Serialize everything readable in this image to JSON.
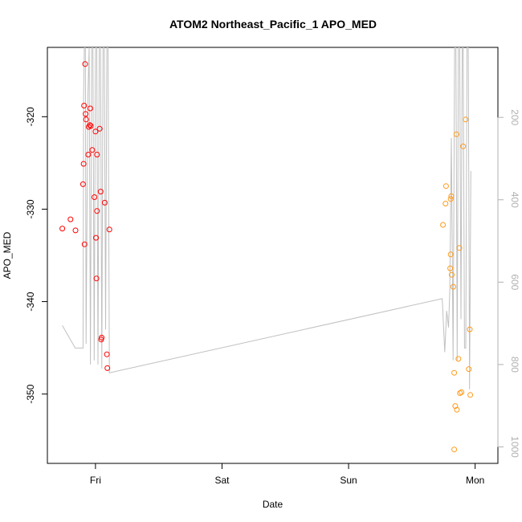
{
  "chart_data": {
    "type": "scatter",
    "title": "ATOM2 Northeast_Pacific_1 APO_MED",
    "xlabel": "Date",
    "ylabel": "APO_MED",
    "x_ticks": [
      {
        "label": "Fri",
        "day": 0
      },
      {
        "label": "Sat",
        "day": 1
      },
      {
        "label": "Sun",
        "day": 2
      },
      {
        "label": "Mon",
        "day": 3
      }
    ],
    "xlim": [
      -0.38,
      3.18
    ],
    "ylim": [
      -357.5,
      -312.5
    ],
    "y_ticks": [
      -320,
      -330,
      -340,
      -350
    ],
    "y2_ticks": [
      200,
      400,
      600,
      800,
      1000
    ],
    "y2lim": [
      1040,
      30
    ],
    "grid": false,
    "colors": {
      "series1": "#ff0000",
      "series2": "#ff9a1a",
      "pressure": "#c0c0c0",
      "right_axis": "#b0b0b0"
    },
    "series": [
      {
        "color": "#ff0000",
        "points": [
          {
            "x": -0.262,
            "y": -332.1
          },
          {
            "x": -0.197,
            "y": -331.1
          },
          {
            "x": -0.158,
            "y": -332.3
          },
          {
            "x": -0.098,
            "y": -327.3
          },
          {
            "x": -0.094,
            "y": -325.1
          },
          {
            "x": -0.09,
            "y": -318.8
          },
          {
            "x": -0.086,
            "y": -333.8
          },
          {
            "x": -0.082,
            "y": -314.3
          },
          {
            "x": -0.078,
            "y": -319.7
          },
          {
            "x": -0.074,
            "y": -320.3
          },
          {
            "x": -0.057,
            "y": -324.1
          },
          {
            "x": -0.053,
            "y": -321.1
          },
          {
            "x": -0.045,
            "y": -320.9
          },
          {
            "x": -0.041,
            "y": -319.1
          },
          {
            "x": -0.037,
            "y": -321.0
          },
          {
            "x": -0.025,
            "y": -323.6
          },
          {
            "x": -0.008,
            "y": -328.7
          },
          {
            "x": 0.0,
            "y": -321.6
          },
          {
            "x": 0.004,
            "y": -333.1
          },
          {
            "x": 0.008,
            "y": -337.5
          },
          {
            "x": 0.012,
            "y": -324.1
          },
          {
            "x": 0.012,
            "y": -330.2
          },
          {
            "x": 0.033,
            "y": -321.3
          },
          {
            "x": 0.041,
            "y": -328.1
          },
          {
            "x": 0.045,
            "y": -344.1
          },
          {
            "x": 0.049,
            "y": -343.9
          },
          {
            "x": 0.073,
            "y": -329.3
          },
          {
            "x": 0.09,
            "y": -345.7
          },
          {
            "x": 0.094,
            "y": -347.2
          },
          {
            "x": 0.11,
            "y": -332.2
          }
        ]
      },
      {
        "color": "#ff9a1a",
        "points": [
          {
            "x": 2.746,
            "y": -331.7
          },
          {
            "x": 2.766,
            "y": -329.4
          },
          {
            "x": 2.77,
            "y": -327.5
          },
          {
            "x": 2.803,
            "y": -336.4
          },
          {
            "x": 2.807,
            "y": -334.9
          },
          {
            "x": 2.807,
            "y": -328.9
          },
          {
            "x": 2.811,
            "y": -328.6
          },
          {
            "x": 2.815,
            "y": -337.1
          },
          {
            "x": 2.827,
            "y": -338.4
          },
          {
            "x": 2.835,
            "y": -347.7
          },
          {
            "x": 2.835,
            "y": -356.0
          },
          {
            "x": 2.843,
            "y": -351.3
          },
          {
            "x": 2.852,
            "y": -321.9
          },
          {
            "x": 2.856,
            "y": -351.7
          },
          {
            "x": 2.868,
            "y": -346.2
          },
          {
            "x": 2.876,
            "y": -334.2
          },
          {
            "x": 2.88,
            "y": -349.9
          },
          {
            "x": 2.892,
            "y": -349.8
          },
          {
            "x": 2.905,
            "y": -323.2
          },
          {
            "x": 2.925,
            "y": -320.3
          },
          {
            "x": 2.95,
            "y": -347.3
          },
          {
            "x": 2.958,
            "y": -343.0
          },
          {
            "x": 2.962,
            "y": -350.1
          }
        ]
      }
    ],
    "pressure_line": [
      {
        "x": -0.262,
        "y": 705
      },
      {
        "x": -0.16,
        "y": 760
      },
      {
        "x": -0.098,
        "y": 760
      },
      {
        "x": -0.094,
        "y": 150
      },
      {
        "x": -0.088,
        "y": 30
      },
      {
        "x": -0.08,
        "y": 30
      },
      {
        "x": -0.074,
        "y": 750
      },
      {
        "x": -0.06,
        "y": 150
      },
      {
        "x": -0.05,
        "y": 30
      },
      {
        "x": -0.04,
        "y": 800
      },
      {
        "x": -0.03,
        "y": 30
      },
      {
        "x": -0.02,
        "y": 30
      },
      {
        "x": -0.01,
        "y": 790
      },
      {
        "x": 0.0,
        "y": 30
      },
      {
        "x": 0.01,
        "y": 30
      },
      {
        "x": 0.02,
        "y": 800
      },
      {
        "x": 0.03,
        "y": 30
      },
      {
        "x": 0.04,
        "y": 30
      },
      {
        "x": 0.05,
        "y": 810
      },
      {
        "x": 0.06,
        "y": 30
      },
      {
        "x": 0.07,
        "y": 30
      },
      {
        "x": 0.08,
        "y": 715
      },
      {
        "x": 0.09,
        "y": 30
      },
      {
        "x": 0.1,
        "y": 30
      },
      {
        "x": 0.11,
        "y": 820
      },
      {
        "x": 2.74,
        "y": 640
      },
      {
        "x": 2.76,
        "y": 770
      },
      {
        "x": 2.775,
        "y": 670
      },
      {
        "x": 2.79,
        "y": 710
      },
      {
        "x": 2.8,
        "y": 620
      },
      {
        "x": 2.812,
        "y": 250
      },
      {
        "x": 2.826,
        "y": 790
      },
      {
        "x": 2.838,
        "y": 30
      },
      {
        "x": 2.848,
        "y": 30
      },
      {
        "x": 2.858,
        "y": 790
      },
      {
        "x": 2.868,
        "y": 30
      },
      {
        "x": 2.878,
        "y": 30
      },
      {
        "x": 2.888,
        "y": 690
      },
      {
        "x": 2.898,
        "y": 30
      },
      {
        "x": 2.906,
        "y": 30
      },
      {
        "x": 2.916,
        "y": 760
      },
      {
        "x": 2.926,
        "y": 760
      },
      {
        "x": 2.936,
        "y": 30
      },
      {
        "x": 2.946,
        "y": 30
      },
      {
        "x": 2.956,
        "y": 860
      },
      {
        "x": 2.966,
        "y": 330
      }
    ]
  }
}
